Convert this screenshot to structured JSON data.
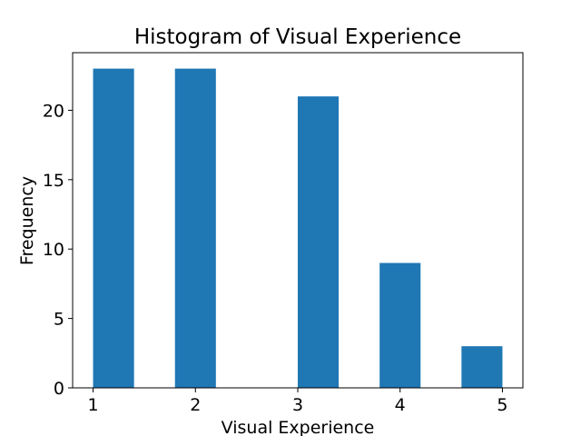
{
  "chart_data": {
    "type": "bar",
    "title": "Histogram of Visual Experience",
    "xlabel": "Visual Experience",
    "ylabel": "Frequency",
    "bins": [
      {
        "start": 1.0,
        "end": 1.4,
        "count": 23
      },
      {
        "start": 1.8,
        "end": 2.2,
        "count": 23
      },
      {
        "start": 2.2,
        "end": 2.6,
        "count": 0
      },
      {
        "start": 2.6,
        "end": 3.0,
        "count": 0
      },
      {
        "start": 3.0,
        "end": 3.4,
        "count": 21
      },
      {
        "start": 3.4,
        "end": 3.8,
        "count": 0
      },
      {
        "start": 3.8,
        "end": 4.2,
        "count": 9
      },
      {
        "start": 4.2,
        "end": 4.6,
        "count": 0
      },
      {
        "start": 4.6,
        "end": 5.0,
        "count": 3
      }
    ],
    "xlim": [
      0.8,
      5.2
    ],
    "ylim": [
      0,
      24.15
    ],
    "xticks": [
      1,
      2,
      3,
      4,
      5
    ],
    "yticks": [
      0,
      5,
      10,
      15,
      20
    ],
    "grid": false,
    "bar_color": "#1f77b4"
  }
}
